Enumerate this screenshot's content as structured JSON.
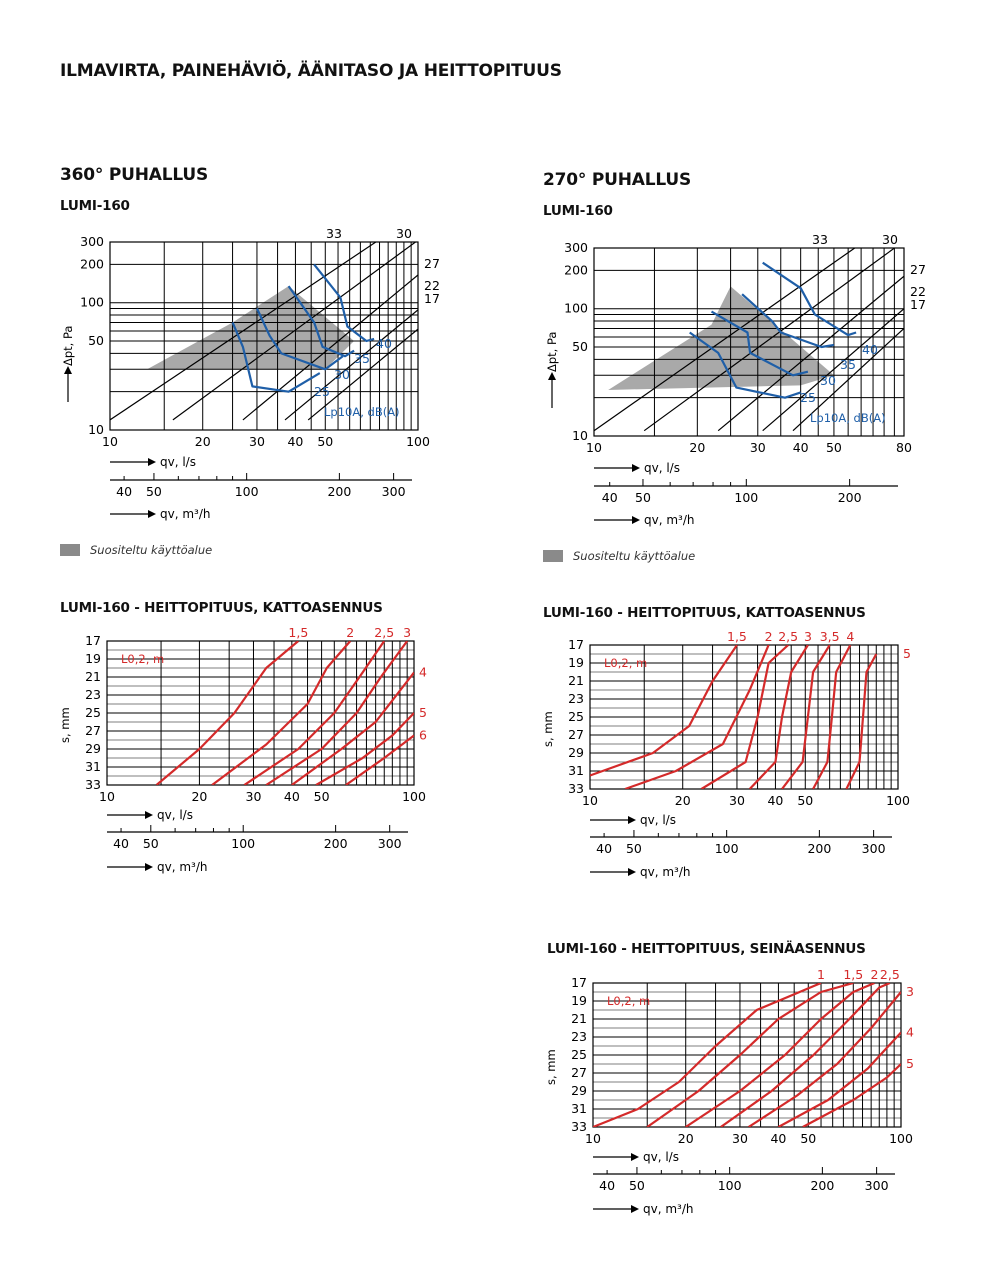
{
  "title": "ILMAVIRTA, PAINEHÄVIÖ, ÄÄNITASO JA HEITTOPITUUS",
  "left": {
    "section": "360° PUHALLUS",
    "model": "LUMI-160",
    "legend": "Suositeltu käyttöalue",
    "throw_title": "LUMI-160 - HEITTOPITUUS, KATTOASENNUS"
  },
  "right": {
    "section": "270° PUHALLUS",
    "model": "LUMI-160",
    "legend": "Suositeltu käyttöalue",
    "throw_ceiling_title": "LUMI-160 - HEITTOPITUUS, KATTOASENNUS",
    "throw_wall_title": "LUMI-160 - HEITTOPITUUS, SEINÄASENNUS"
  },
  "chart_data": [
    {
      "id": "p360",
      "type": "line",
      "xlog": true,
      "ylog": true,
      "xlim": [
        10,
        100
      ],
      "ylim": [
        10,
        300
      ],
      "xticks": [
        10,
        20,
        30,
        40,
        50,
        100
      ],
      "yticks": [
        10,
        50,
        100,
        200,
        300
      ],
      "ylabel": "Δpt, Pa",
      "xlabel": "qv, l/s",
      "x2label": "qv, m³/h",
      "x2ticks": [
        40,
        50,
        100,
        200,
        300
      ],
      "zone": [
        [
          13.2,
          30
        ],
        [
          25,
          70
        ],
        [
          38,
          135
        ],
        [
          62,
          50
        ],
        [
          50,
          30
        ]
      ],
      "series": [
        {
          "name": "33",
          "color": "#000000",
          "points": [
            [
              10,
              12
            ],
            [
              100,
              500
            ]
          ]
        },
        {
          "name": "30",
          "color": "#000000",
          "points": [
            [
              16,
              12
            ],
            [
              100,
              310
            ]
          ]
        },
        {
          "name": "27",
          "color": "#000000",
          "points": [
            [
              27,
              12
            ],
            [
              100,
              165
            ]
          ]
        },
        {
          "name": "22",
          "color": "#000000",
          "points": [
            [
              37,
              12
            ],
            [
              100,
              88
            ]
          ]
        },
        {
          "name": "17",
          "color": "#000000",
          "points": [
            [
              44,
              12
            ],
            [
              100,
              62
            ]
          ]
        },
        {
          "name": "25",
          "color": "#1f5fa8",
          "points": [
            [
              25,
              70
            ],
            [
              27,
              45
            ],
            [
              29,
              22
            ],
            [
              38,
              20
            ],
            [
              48,
              28
            ]
          ]
        },
        {
          "name": "30",
          "color": "#1f5fa8",
          "points": [
            [
              30,
              90
            ],
            [
              33,
              55
            ],
            [
              36,
              40
            ],
            [
              50,
              30
            ],
            [
              57,
              38
            ]
          ]
        },
        {
          "name": "35",
          "color": "#1f5fa8",
          "points": [
            [
              38,
              135
            ],
            [
              46,
              70
            ],
            [
              49,
              45
            ],
            [
              58,
              38
            ],
            [
              62,
              42
            ]
          ]
        },
        {
          "name": "40",
          "color": "#1f5fa8",
          "points": [
            [
              46,
              200
            ],
            [
              56,
              110
            ],
            [
              59,
              65
            ],
            [
              68,
              50
            ],
            [
              72,
              52
            ]
          ]
        }
      ],
      "right_labels": [
        "27",
        "22",
        "17"
      ],
      "top_labels": [
        "33",
        "30"
      ],
      "blue_labels": [
        "40",
        "35",
        "30",
        "25"
      ],
      "annotation": "Lp10A, dB(A)"
    },
    {
      "id": "p270",
      "type": "line",
      "xlog": true,
      "ylog": true,
      "xlim": [
        10,
        80
      ],
      "ylim": [
        10,
        300
      ],
      "xticks": [
        10,
        20,
        30,
        40,
        50,
        80
      ],
      "yticks": [
        10,
        50,
        100,
        200,
        300
      ],
      "ylabel": "Δpt, Pa",
      "xlabel": "qv, l/s",
      "x2label": "qv, m³/h",
      "x2ticks": [
        40,
        50,
        100,
        200
      ],
      "zone": [
        [
          11,
          23
        ],
        [
          22,
          75
        ],
        [
          25,
          150
        ],
        [
          50,
          30
        ],
        [
          40,
          25
        ]
      ],
      "series": [
        {
          "name": "33",
          "color": "#000000",
          "points": [
            [
              10,
              11
            ],
            [
              80,
              560
            ]
          ]
        },
        {
          "name": "30",
          "color": "#000000",
          "points": [
            [
              14,
              11
            ],
            [
              80,
              340
            ]
          ]
        },
        {
          "name": "27",
          "color": "#000000",
          "points": [
            [
              23,
              11
            ],
            [
              80,
              180
            ]
          ]
        },
        {
          "name": "22",
          "color": "#000000",
          "points": [
            [
              31,
              11
            ],
            [
              80,
              100
            ]
          ]
        },
        {
          "name": "17",
          "color": "#000000",
          "points": [
            [
              38,
              11
            ],
            [
              80,
              70
            ]
          ]
        },
        {
          "name": "25",
          "color": "#1f5fa8",
          "points": [
            [
              19,
              65
            ],
            [
              23,
              45
            ],
            [
              26,
              24
            ],
            [
              36,
              20
            ],
            [
              40,
              22
            ]
          ]
        },
        {
          "name": "30",
          "color": "#1f5fa8",
          "points": [
            [
              22,
              95
            ],
            [
              28,
              65
            ],
            [
              28.5,
              45
            ],
            [
              38,
              30
            ],
            [
              42,
              32
            ]
          ]
        },
        {
          "name": "35",
          "color": "#1f5fa8",
          "points": [
            [
              27,
              130
            ],
            [
              33,
              80
            ],
            [
              35,
              65
            ],
            [
              46,
              50
            ],
            [
              50,
              52
            ]
          ]
        },
        {
          "name": "40",
          "color": "#1f5fa8",
          "points": [
            [
              31,
              230
            ],
            [
              40,
              145
            ],
            [
              44,
              90
            ],
            [
              55,
              62
            ],
            [
              58,
              65
            ]
          ]
        }
      ],
      "right_labels": [
        "27",
        "22",
        "17"
      ],
      "top_labels": [
        "33",
        "30"
      ],
      "blue_labels": [
        "40",
        "35",
        "30",
        "25"
      ],
      "annotation": "Lp10A, dB(A)"
    },
    {
      "id": "t360",
      "type": "line",
      "xlog": true,
      "xlim": [
        10,
        100
      ],
      "ylim": [
        17,
        33
      ],
      "xticks": [
        10,
        20,
        30,
        40,
        50,
        100
      ],
      "yticks": [
        17,
        19,
        21,
        23,
        25,
        27,
        29,
        31,
        33
      ],
      "ylabel": "s, mm",
      "xlabel": "qv, l/s",
      "x2label": "qv, m³/h",
      "x2ticks": [
        40,
        50,
        100,
        200,
        300
      ],
      "legend_label": "L0,2, m",
      "series": [
        {
          "name": "1,5",
          "color": "#d42a2a",
          "points": [
            [
              14.5,
              33
            ],
            [
              20,
              29
            ],
            [
              26,
              25
            ],
            [
              33,
              20
            ],
            [
              42,
              17
            ]
          ]
        },
        {
          "name": "2",
          "color": "#d42a2a",
          "points": [
            [
              22,
              33
            ],
            [
              33,
              28.5
            ],
            [
              45,
              24
            ],
            [
              52,
              20
            ],
            [
              62,
              17
            ]
          ]
        },
        {
          "name": "2,5",
          "color": "#d42a2a",
          "points": [
            [
              28,
              33
            ],
            [
              42,
              29
            ],
            [
              55,
              25
            ],
            [
              68,
              20.5
            ],
            [
              80,
              17
            ]
          ]
        },
        {
          "name": "3",
          "color": "#d42a2a",
          "points": [
            [
              33,
              33
            ],
            [
              50,
              29
            ],
            [
              65,
              25
            ],
            [
              78,
              21
            ],
            [
              95,
              17
            ]
          ]
        },
        {
          "name": "4",
          "color": "#d42a2a",
          "points": [
            [
              40,
              33
            ],
            [
              58,
              29
            ],
            [
              75,
              26
            ],
            [
              100,
              20.5
            ]
          ]
        },
        {
          "name": "5",
          "color": "#d42a2a",
          "points": [
            [
              48,
              33
            ],
            [
              68,
              30
            ],
            [
              85,
              27.5
            ],
            [
              100,
              25
            ]
          ]
        },
        {
          "name": "6",
          "color": "#d42a2a",
          "points": [
            [
              60,
              33
            ],
            [
              80,
              30
            ],
            [
              100,
              27.5
            ]
          ]
        }
      ]
    },
    {
      "id": "t270c",
      "type": "line",
      "xlog": true,
      "xlim": [
        10,
        100
      ],
      "ylim": [
        17,
        33
      ],
      "xticks": [
        10,
        20,
        30,
        40,
        50,
        100
      ],
      "yticks": [
        17,
        19,
        21,
        23,
        25,
        27,
        29,
        31,
        33
      ],
      "ylabel": "s, mm",
      "xlabel": "qv, l/s",
      "x2label": "qv, m³/h",
      "x2ticks": [
        40,
        50,
        100,
        200,
        300
      ],
      "legend_label": "L0,2, m",
      "series": [
        {
          "name": "1,5",
          "color": "#d42a2a",
          "points": [
            [
              10,
              31.5
            ],
            [
              16,
              29
            ],
            [
              21,
              26
            ],
            [
              25,
              21
            ],
            [
              30,
              17
            ]
          ]
        },
        {
          "name": "2",
          "color": "#d42a2a",
          "points": [
            [
              13,
              33
            ],
            [
              19,
              31
            ],
            [
              27,
              28
            ],
            [
              33,
              22
            ],
            [
              38,
              17
            ]
          ]
        },
        {
          "name": "2,5",
          "color": "#d42a2a",
          "points": [
            [
              23,
              33
            ],
            [
              32,
              30
            ],
            [
              35,
              25
            ],
            [
              38,
              19
            ],
            [
              44,
              17
            ]
          ]
        },
        {
          "name": "3",
          "color": "#d42a2a",
          "points": [
            [
              33,
              33
            ],
            [
              40,
              30
            ],
            [
              42,
              25
            ],
            [
              45,
              20
            ],
            [
              51,
              17
            ]
          ]
        },
        {
          "name": "3,5",
          "color": "#d42a2a",
          "points": [
            [
              42,
              33
            ],
            [
              49,
              30
            ],
            [
              51,
              25
            ],
            [
              53,
              20
            ],
            [
              60,
              17
            ]
          ]
        },
        {
          "name": "4",
          "color": "#d42a2a",
          "points": [
            [
              53,
              33
            ],
            [
              59,
              30
            ],
            [
              61,
              25
            ],
            [
              63,
              20
            ],
            [
              70,
              17
            ]
          ]
        },
        {
          "name": "5",
          "color": "#d42a2a",
          "points": [
            [
              68,
              33
            ],
            [
              75,
              30
            ],
            [
              77,
              25
            ],
            [
              79,
              20
            ],
            [
              85,
              18
            ]
          ]
        }
      ]
    },
    {
      "id": "t270w",
      "type": "line",
      "xlog": true,
      "xlim": [
        10,
        100
      ],
      "ylim": [
        17,
        33
      ],
      "xticks": [
        10,
        20,
        30,
        40,
        50,
        100
      ],
      "yticks": [
        17,
        19,
        21,
        23,
        25,
        27,
        29,
        31,
        33
      ],
      "ylabel": "s, mm",
      "xlabel": "qv, l/s",
      "x2label": "qv, m³/h",
      "x2ticks": [
        40,
        50,
        100,
        200,
        300
      ],
      "legend_label": "L0,2, m",
      "series": [
        {
          "name": "1",
          "color": "#d42a2a",
          "points": [
            [
              10,
              33
            ],
            [
              14,
              31
            ],
            [
              19,
              28
            ],
            [
              25,
              24
            ],
            [
              34,
              20
            ],
            [
              55,
              17
            ]
          ]
        },
        {
          "name": "1,5",
          "color": "#d42a2a",
          "points": [
            [
              15,
              33
            ],
            [
              22,
              29
            ],
            [
              30,
              25
            ],
            [
              40,
              21
            ],
            [
              55,
              18
            ],
            [
              70,
              17
            ]
          ]
        },
        {
          "name": "2",
          "color": "#d42a2a",
          "points": [
            [
              20,
              33
            ],
            [
              30,
              29
            ],
            [
              42,
              25
            ],
            [
              55,
              21
            ],
            [
              70,
              18
            ],
            [
              82,
              17
            ]
          ]
        },
        {
          "name": "2,5",
          "color": "#d42a2a",
          "points": [
            [
              26,
              33
            ],
            [
              38,
              29
            ],
            [
              52,
              25
            ],
            [
              68,
              21
            ],
            [
              85,
              17.5
            ],
            [
              92,
              17
            ]
          ]
        },
        {
          "name": "3",
          "color": "#d42a2a",
          "points": [
            [
              32,
              33
            ],
            [
              46,
              29.5
            ],
            [
              62,
              26
            ],
            [
              80,
              22
            ],
            [
              100,
              18
            ]
          ]
        },
        {
          "name": "4",
          "color": "#d42a2a",
          "points": [
            [
              40,
              33
            ],
            [
              58,
              30
            ],
            [
              78,
              26.5
            ],
            [
              100,
              22.5
            ]
          ]
        },
        {
          "name": "5",
          "color": "#d42a2a",
          "points": [
            [
              48,
              33
            ],
            [
              70,
              30
            ],
            [
              90,
              27.5
            ],
            [
              100,
              26
            ]
          ]
        }
      ]
    }
  ]
}
